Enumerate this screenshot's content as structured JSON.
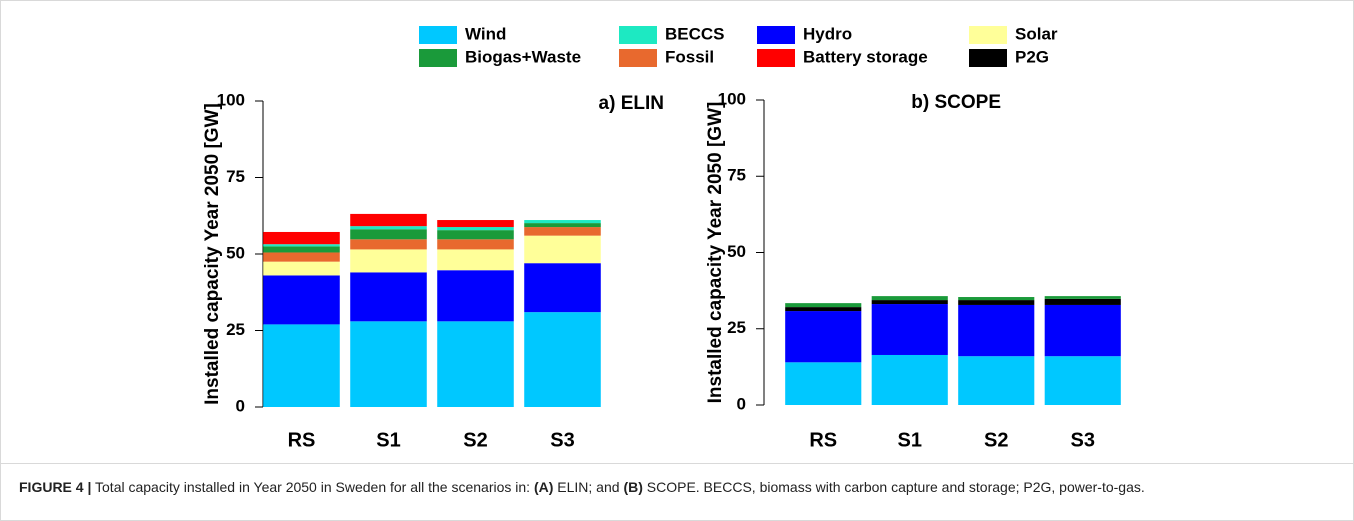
{
  "chart_data": [
    {
      "type": "stacked-bar",
      "title": "a) ELIN",
      "y_label": "Installed capacity Year 2050 [GW]",
      "categories": [
        "RS",
        "S1",
        "S2",
        "S3"
      ],
      "ylim": [
        0,
        100
      ],
      "yticks": [
        0,
        25,
        50,
        75,
        100
      ],
      "grid": false,
      "series": [
        {
          "name": "Wind",
          "color": "#00c8ff",
          "values": [
            27,
            28,
            28,
            31
          ]
        },
        {
          "name": "Hydro",
          "color": "#0000ff",
          "values": [
            16,
            16,
            16.7,
            16
          ]
        },
        {
          "name": "Solar",
          "color": "#ffff99",
          "values": [
            4.5,
            7.5,
            6.8,
            9
          ]
        },
        {
          "name": "Fossil",
          "color": "#e8692e",
          "values": [
            3,
            3.3,
            3.3,
            2.8
          ]
        },
        {
          "name": "Biogas+Waste",
          "color": "#1a9a3a",
          "values": [
            2,
            3.3,
            3,
            1.3
          ]
        },
        {
          "name": "BECCS",
          "color": "#1de9c2",
          "values": [
            0.7,
            1,
            1,
            1
          ]
        },
        {
          "name": "Battery storage",
          "color": "#ff0000",
          "values": [
            4,
            4,
            2.3,
            0
          ]
        },
        {
          "name": "P2G",
          "color": "#000000",
          "values": [
            0,
            0,
            0,
            0
          ]
        }
      ]
    },
    {
      "type": "stacked-bar",
      "title": "b) SCOPE",
      "y_label": "Installed capacity Year 2050 [GW]",
      "categories": [
        "RS",
        "S1",
        "S2",
        "S3"
      ],
      "ylim": [
        0,
        100
      ],
      "yticks": [
        0,
        25,
        50,
        75,
        100
      ],
      "grid": false,
      "series": [
        {
          "name": "Wind",
          "color": "#00c8ff",
          "values": [
            14,
            16.4,
            16,
            16
          ]
        },
        {
          "name": "Hydro",
          "color": "#0000ff",
          "values": [
            16.8,
            16.7,
            16.8,
            16.8
          ]
        },
        {
          "name": "P2G",
          "color": "#000000",
          "values": [
            1.3,
            1.3,
            1.6,
            2
          ]
        },
        {
          "name": "Biogas+Waste",
          "color": "#1a9a3a",
          "values": [
            1.3,
            1.3,
            1,
            0.9
          ]
        },
        {
          "name": "Solar",
          "color": "#ffff99",
          "values": [
            0,
            0,
            0,
            0
          ]
        },
        {
          "name": "Fossil",
          "color": "#e8692e",
          "values": [
            0,
            0,
            0,
            0
          ]
        },
        {
          "name": "BECCS",
          "color": "#1de9c2",
          "values": [
            0,
            0,
            0,
            0
          ]
        },
        {
          "name": "Battery storage",
          "color": "#ff0000",
          "values": [
            0,
            0,
            0,
            0
          ]
        }
      ]
    }
  ],
  "caption": [
    "FIGURE 4 |",
    "Total capacity installed in Year 2050 in Sweden for all the scenarios in:",
    "(A)",
    "ELIN; and",
    "(B)",
    "SCOPE. BECCS, biomass with carbon capture and storage; P2G, power-to-gas."
  ]
}
